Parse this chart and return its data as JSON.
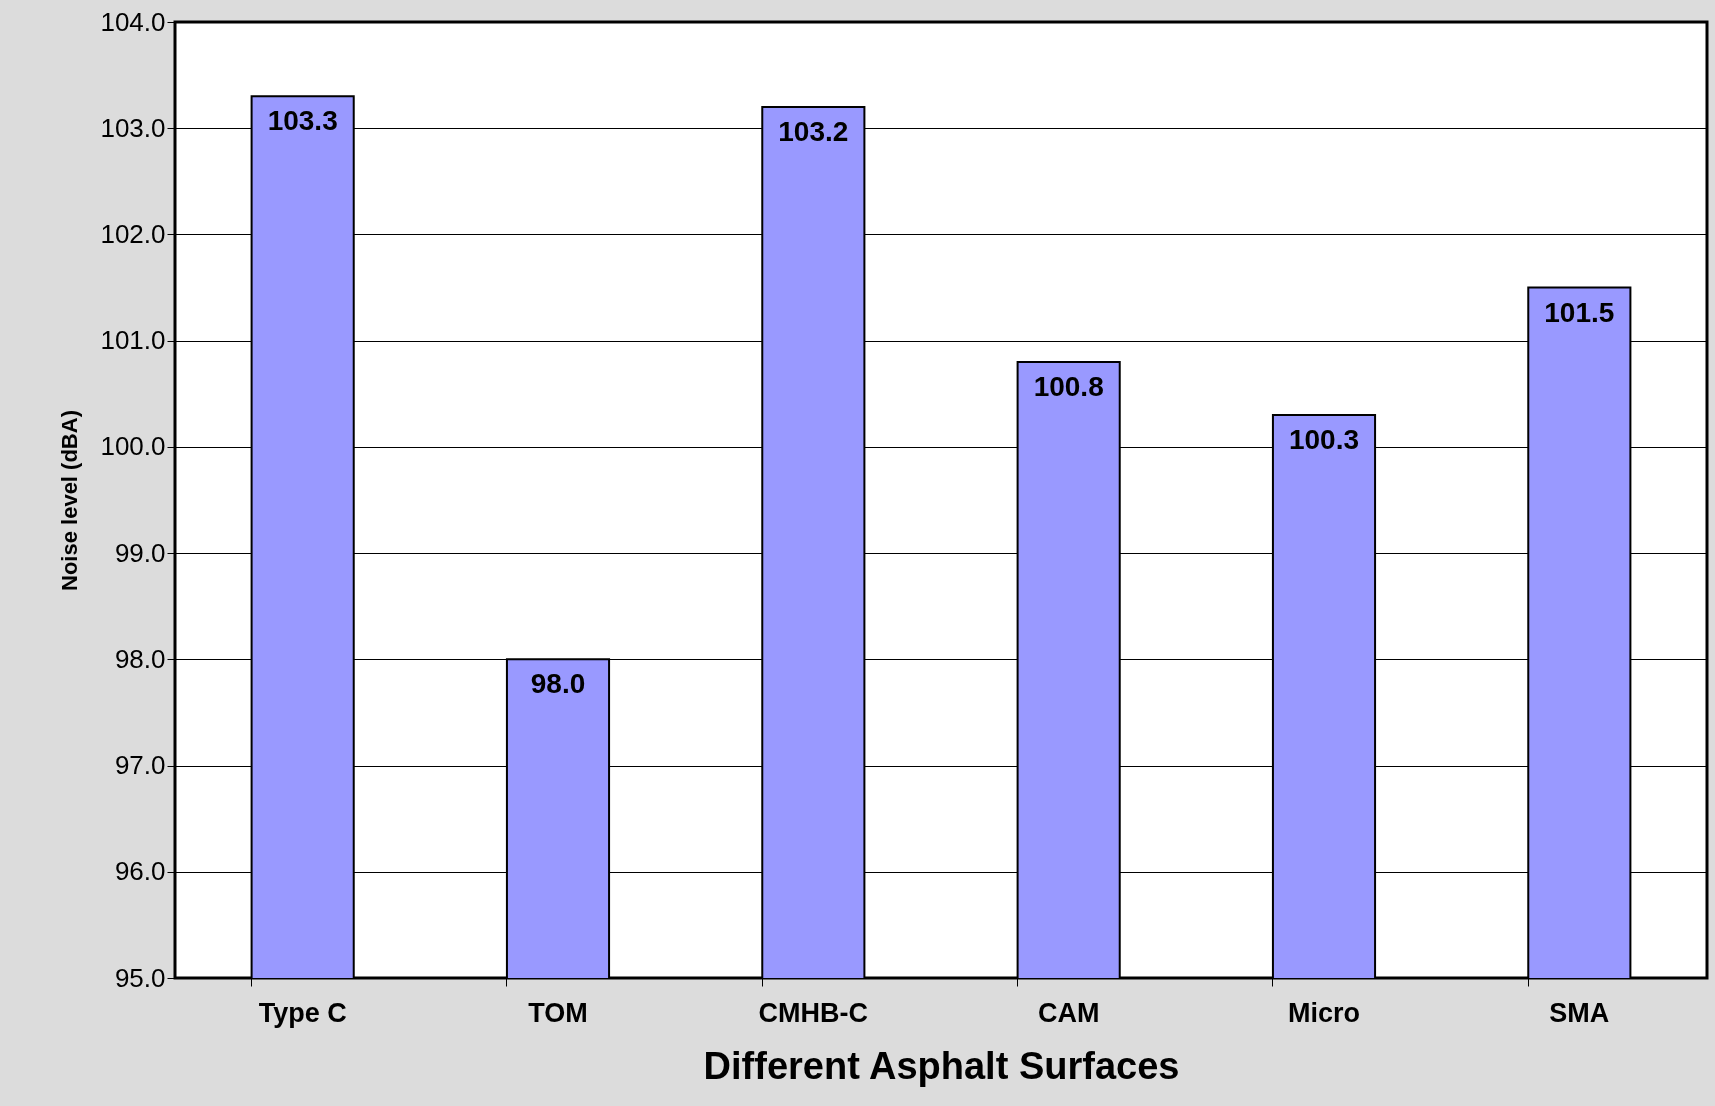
{
  "chart_data": {
    "type": "bar",
    "xlabel": "Different Asphalt Surfaces",
    "ylabel": "Noise level (dBA)",
    "categories": [
      "Type C",
      "TOM",
      "CMHB-C",
      "CAM",
      "Micro",
      "SMA"
    ],
    "values": [
      103.3,
      98.0,
      103.2,
      100.8,
      100.3,
      101.5
    ],
    "value_labels": [
      "103.3",
      "98.0",
      "103.2",
      "100.8",
      "100.3",
      "101.5"
    ],
    "color": "#9999ff",
    "ylim": [
      95,
      104
    ],
    "yticks": [
      {
        "value": 95,
        "label": "95.0"
      },
      {
        "value": 96,
        "label": "96.0"
      },
      {
        "value": 97,
        "label": "97.0"
      },
      {
        "value": 98,
        "label": "98.0"
      },
      {
        "value": 99,
        "label": "99.0"
      },
      {
        "value": 100,
        "label": "100.0"
      },
      {
        "value": 101,
        "label": "101.0"
      },
      {
        "value": 102,
        "label": "102.0"
      },
      {
        "value": 103,
        "label": "103.0"
      },
      {
        "value": 104,
        "label": "104.0"
      }
    ],
    "grid": "y"
  }
}
